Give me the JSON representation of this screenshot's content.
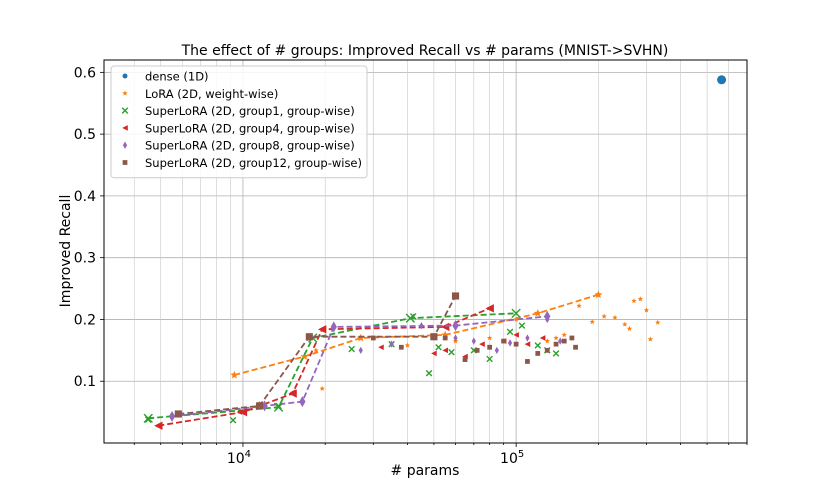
{
  "chart_data": {
    "type": "scatter",
    "title": "The effect of # groups: Improved Recall vs # params (MNIST->SVHN)",
    "xlabel": "# params",
    "ylabel": "Improved Recall",
    "xscale": "log",
    "xlim": [
      3100,
      700000
    ],
    "ylim": [
      0.0,
      0.62
    ],
    "grid": true,
    "legend_position": "upper-left",
    "yticks": [
      {
        "v": 0.1,
        "label": "0.1"
      },
      {
        "v": 0.2,
        "label": "0.2"
      },
      {
        "v": 0.3,
        "label": "0.3"
      },
      {
        "v": 0.4,
        "label": "0.4"
      },
      {
        "v": 0.5,
        "label": "0.5"
      },
      {
        "v": 0.6,
        "label": "0.6"
      }
    ],
    "xticks": [
      {
        "v": 10000,
        "label": "10",
        "exp": "4"
      },
      {
        "v": 100000,
        "label": "10",
        "exp": "5"
      }
    ],
    "series": [
      {
        "name": "dense (1D)",
        "color": "#1f77b4",
        "marker": "circle",
        "points": [
          [
            565000,
            0.588
          ]
        ],
        "line": []
      },
      {
        "name": "LoRA (2D, weight-wise)",
        "color": "#ff7f0e",
        "marker": "star",
        "points": [
          [
            9300,
            0.11
          ],
          [
            18500,
            0.15
          ],
          [
            19500,
            0.088
          ],
          [
            40000,
            0.158
          ],
          [
            60000,
            0.165
          ],
          [
            80000,
            0.17
          ],
          [
            100000,
            0.2
          ],
          [
            120000,
            0.21
          ],
          [
            150000,
            0.175
          ],
          [
            170000,
            0.222
          ],
          [
            190000,
            0.196
          ],
          [
            200000,
            0.24
          ],
          [
            210000,
            0.205
          ],
          [
            230000,
            0.203
          ],
          [
            250000,
            0.192
          ],
          [
            260000,
            0.185
          ],
          [
            270000,
            0.23
          ],
          [
            285000,
            0.233
          ],
          [
            300000,
            0.215
          ],
          [
            310000,
            0.168
          ],
          [
            330000,
            0.195
          ],
          [
            130000,
            0.165
          ],
          [
            140000,
            0.17
          ]
        ],
        "line": [
          [
            9300,
            0.11
          ],
          [
            16800,
            0.14
          ],
          [
            27000,
            0.17
          ],
          [
            55000,
            0.175
          ],
          [
            120000,
            0.21
          ],
          [
            200000,
            0.24
          ]
        ]
      },
      {
        "name": "SuperLoRA (2D, group1, group-wise)",
        "color": "#2ca02c",
        "marker": "x",
        "points": [
          [
            4500,
            0.038
          ],
          [
            9200,
            0.037
          ],
          [
            13500,
            0.06
          ],
          [
            25000,
            0.152
          ],
          [
            35000,
            0.16
          ],
          [
            42000,
            0.205
          ],
          [
            48000,
            0.113
          ],
          [
            52000,
            0.155
          ],
          [
            58000,
            0.147
          ],
          [
            70000,
            0.15
          ],
          [
            80000,
            0.136
          ],
          [
            95000,
            0.18
          ],
          [
            105000,
            0.19
          ],
          [
            120000,
            0.158
          ],
          [
            130000,
            0.15
          ],
          [
            140000,
            0.145
          ]
        ],
        "line": [
          [
            4500,
            0.04
          ],
          [
            13500,
            0.058
          ],
          [
            18000,
            0.17
          ],
          [
            41000,
            0.202
          ],
          [
            100000,
            0.21
          ]
        ]
      },
      {
        "name": "SuperLoRA (2D, group4, group-wise)",
        "color": "#d62728",
        "marker": "triangle-left",
        "points": [
          [
            4900,
            0.028
          ],
          [
            9700,
            0.05
          ],
          [
            15200,
            0.082
          ],
          [
            19500,
            0.185
          ],
          [
            32000,
            0.155
          ],
          [
            50000,
            0.145
          ],
          [
            55000,
            0.15
          ],
          [
            65000,
            0.14
          ],
          [
            75000,
            0.16
          ],
          [
            90000,
            0.165
          ],
          [
            100000,
            0.175
          ],
          [
            110000,
            0.16
          ],
          [
            125000,
            0.17
          ]
        ],
        "line": [
          [
            4900,
            0.028
          ],
          [
            10000,
            0.05
          ],
          [
            15200,
            0.08
          ],
          [
            19500,
            0.184
          ],
          [
            55000,
            0.188
          ],
          [
            80000,
            0.218
          ]
        ]
      },
      {
        "name": "SuperLoRA (2D, group8, group-wise)",
        "color": "#9467bd",
        "marker": "diamond",
        "points": [
          [
            5500,
            0.042
          ],
          [
            11500,
            0.062
          ],
          [
            16500,
            0.068
          ],
          [
            21500,
            0.188
          ],
          [
            27000,
            0.15
          ],
          [
            35000,
            0.16
          ],
          [
            45000,
            0.19
          ],
          [
            60000,
            0.17
          ],
          [
            70000,
            0.165
          ],
          [
            85000,
            0.15
          ],
          [
            95000,
            0.162
          ],
          [
            110000,
            0.17
          ],
          [
            130000,
            0.2
          ],
          [
            145000,
            0.165
          ]
        ],
        "line": [
          [
            5500,
            0.043
          ],
          [
            12000,
            0.06
          ],
          [
            16500,
            0.067
          ],
          [
            21500,
            0.188
          ],
          [
            60000,
            0.19
          ],
          [
            130000,
            0.205
          ]
        ]
      },
      {
        "name": "SuperLoRA (2D, group12, group-wise)",
        "color": "#8c564b",
        "marker": "square",
        "points": [
          [
            5800,
            0.047
          ],
          [
            11500,
            0.062
          ],
          [
            17500,
            0.172
          ],
          [
            30000,
            0.17
          ],
          [
            38000,
            0.155
          ],
          [
            50000,
            0.172
          ],
          [
            55000,
            0.17
          ],
          [
            60000,
            0.238
          ],
          [
            65000,
            0.135
          ],
          [
            72000,
            0.15
          ],
          [
            80000,
            0.155
          ],
          [
            90000,
            0.165
          ],
          [
            100000,
            0.16
          ],
          [
            110000,
            0.132
          ],
          [
            120000,
            0.145
          ],
          [
            130000,
            0.15
          ],
          [
            140000,
            0.16
          ],
          [
            150000,
            0.165
          ],
          [
            160000,
            0.17
          ],
          [
            165000,
            0.155
          ]
        ],
        "line": [
          [
            5800,
            0.047
          ],
          [
            11500,
            0.06
          ],
          [
            17500,
            0.172
          ],
          [
            50000,
            0.172
          ],
          [
            60000,
            0.238
          ]
        ]
      }
    ]
  }
}
